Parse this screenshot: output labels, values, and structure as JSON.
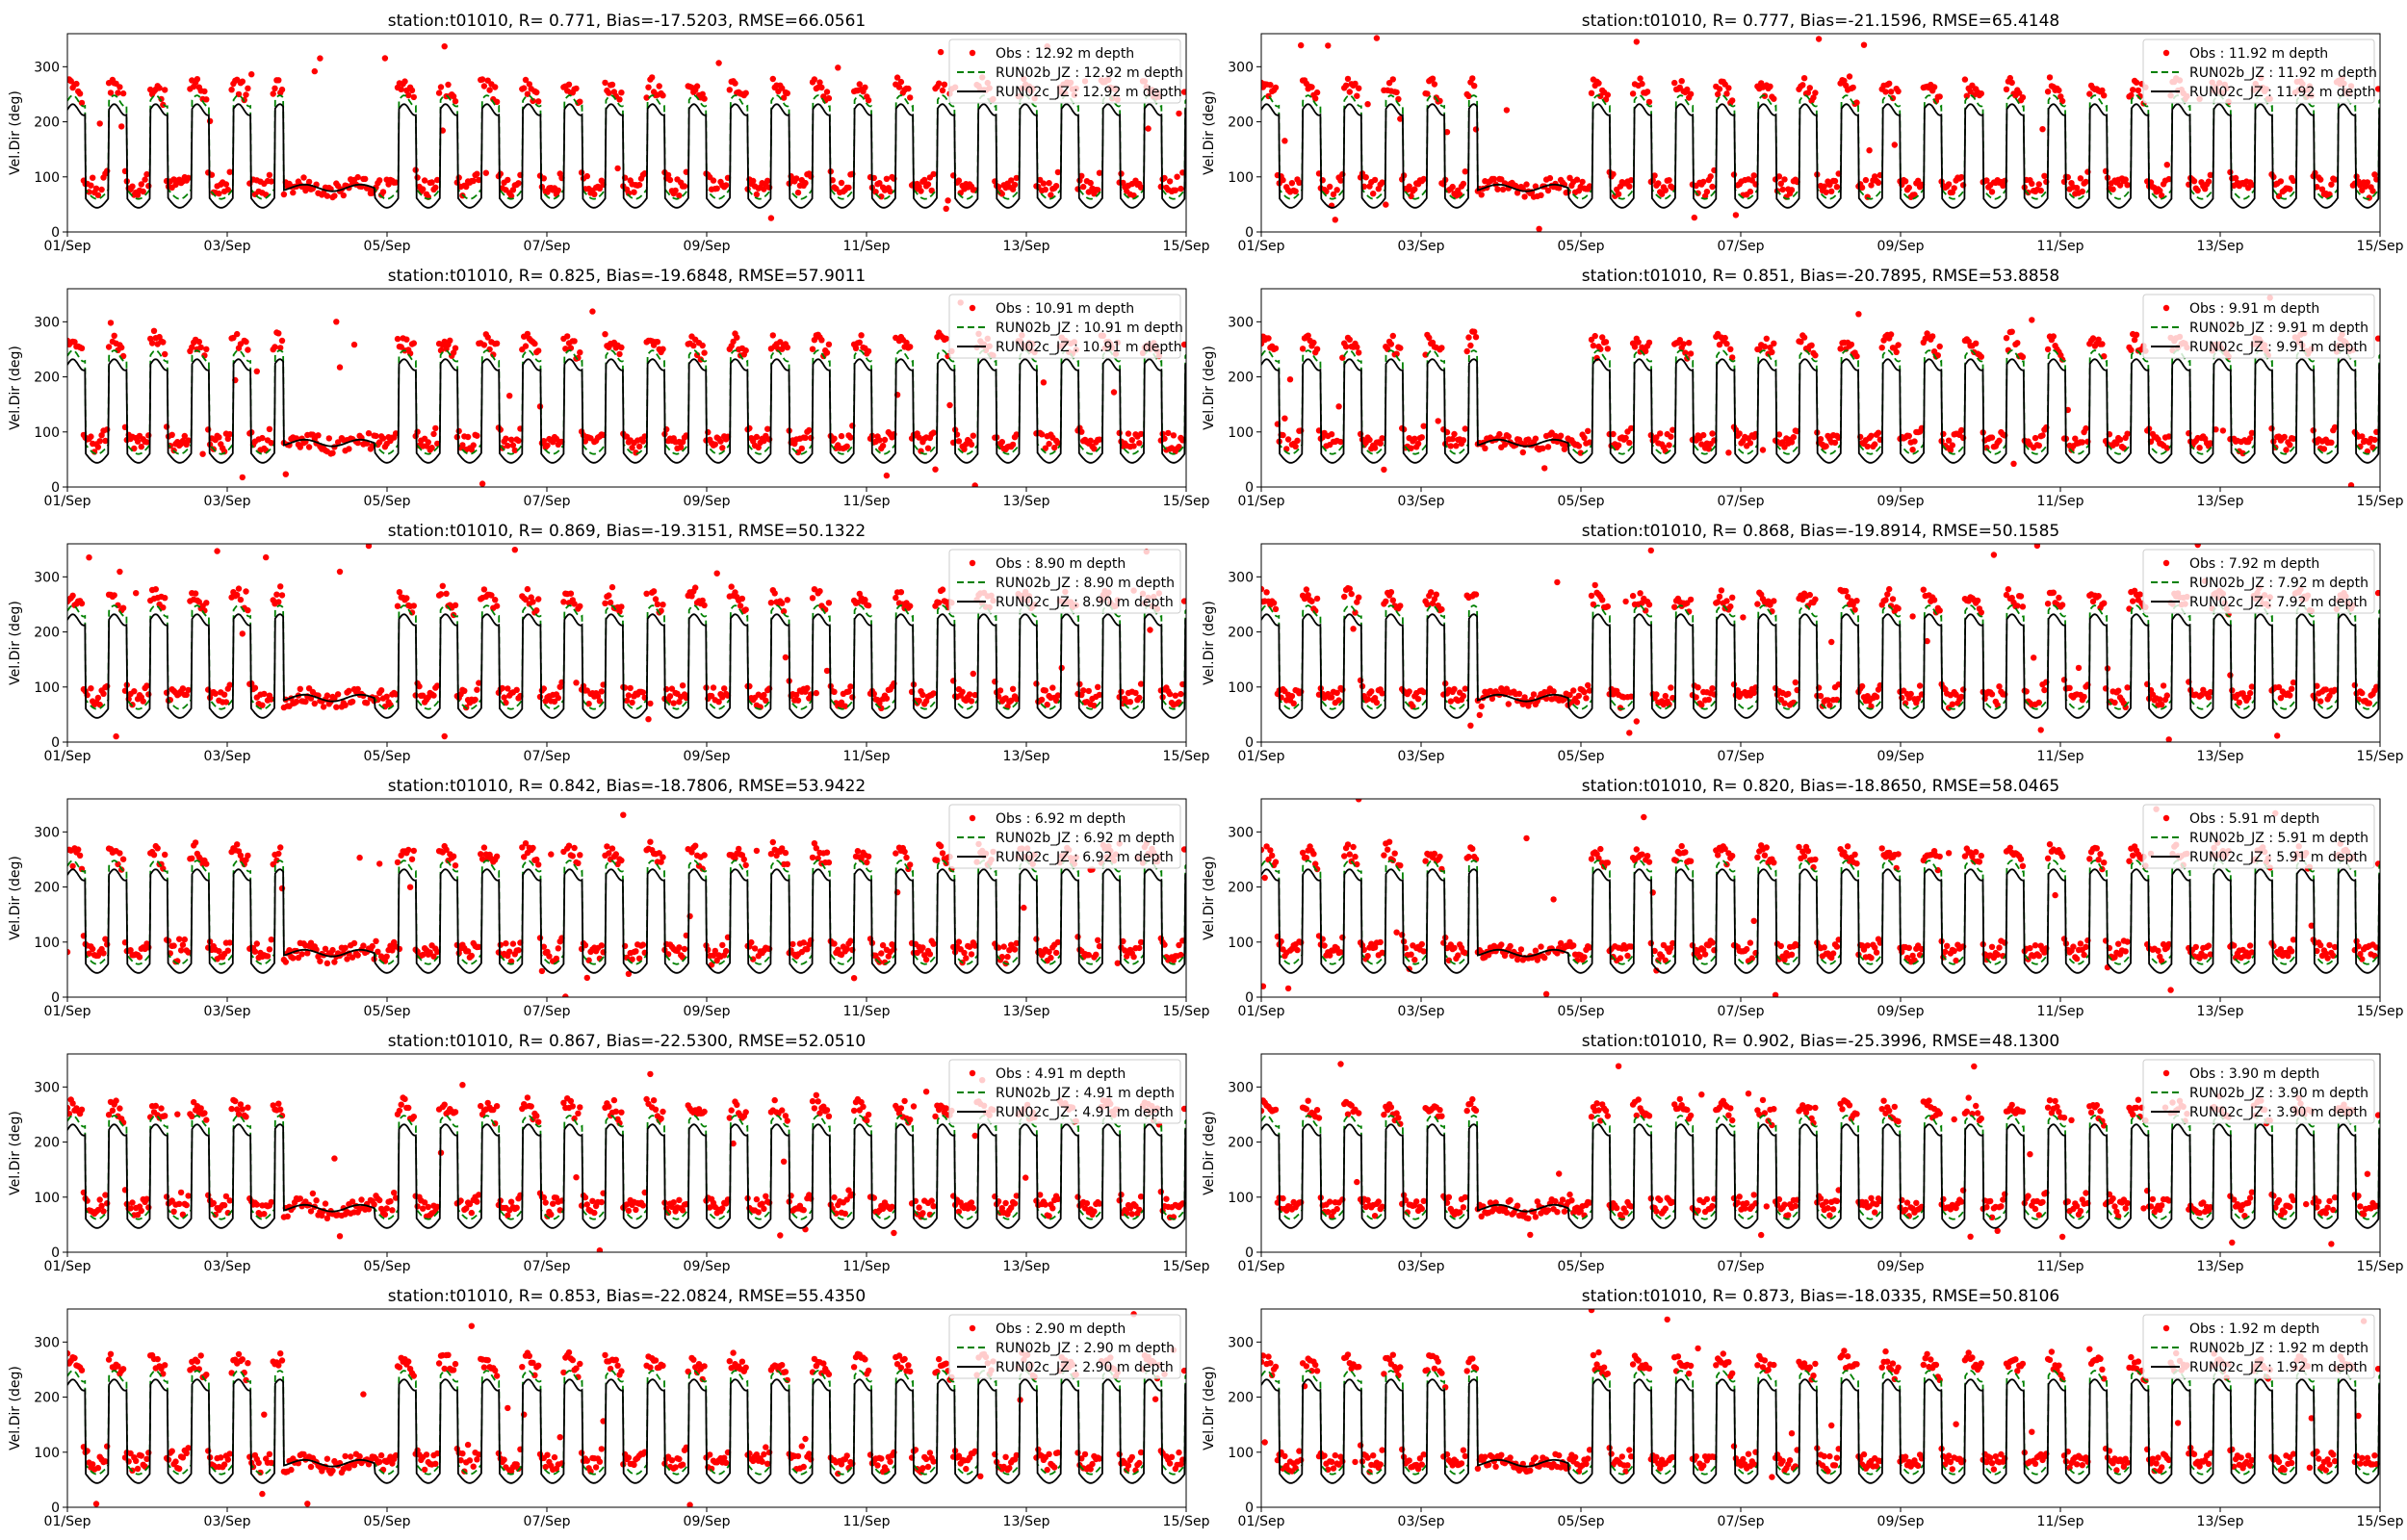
{
  "figure": {
    "ylabel": "Vel.Dir (deg)",
    "x_ticks": [
      "01/Sep",
      "03/Sep",
      "05/Sep",
      "07/Sep",
      "09/Sep",
      "11/Sep",
      "13/Sep",
      "15/Sep"
    ],
    "y_ticks": [
      "0",
      "100",
      "200",
      "300"
    ],
    "colors": {
      "obs": "#ff0000",
      "run02b": "#008000",
      "run02c": "#000000"
    }
  },
  "chart_data": [
    {
      "type": "line",
      "title": "station:t01010, R= 0.771, Bias=-17.5203, RMSE=66.0561",
      "ylabel": "Vel.Dir (deg)",
      "xlim": [
        "01/Sep",
        "15/Sep"
      ],
      "ylim": [
        0,
        360
      ],
      "legend": [
        "Obs : 12.92 m depth",
        "RUN02b_JZ : 12.92 m depth",
        "RUN02c_JZ : 12.92 m depth"
      ],
      "legend_position": "top-right",
      "depth_m": 12.92,
      "R": 0.771,
      "bias": -17.5203,
      "rmse": 66.0561
    },
    {
      "type": "line",
      "title": "station:t01010, R= 0.777, Bias=-21.1596, RMSE=65.4148",
      "ylabel": "Vel.Dir (deg)",
      "xlim": [
        "01/Sep",
        "15/Sep"
      ],
      "ylim": [
        0,
        360
      ],
      "legend": [
        "Obs : 11.92 m depth",
        "RUN02b_JZ : 11.92 m depth",
        "RUN02c_JZ : 11.92 m depth"
      ],
      "legend_position": "top-right",
      "depth_m": 11.92,
      "R": 0.777,
      "bias": -21.1596,
      "rmse": 65.4148
    },
    {
      "type": "line",
      "title": "station:t01010, R= 0.825, Bias=-19.6848, RMSE=57.9011",
      "ylabel": "Vel.Dir (deg)",
      "xlim": [
        "01/Sep",
        "15/Sep"
      ],
      "ylim": [
        0,
        360
      ],
      "legend": [
        "Obs : 10.91 m depth",
        "RUN02b_JZ : 10.91 m depth",
        "RUN02c_JZ : 10.91 m depth"
      ],
      "legend_position": "top-right",
      "depth_m": 10.91,
      "R": 0.825,
      "bias": -19.6848,
      "rmse": 57.9011
    },
    {
      "type": "line",
      "title": "station:t01010, R= 0.851, Bias=-20.7895, RMSE=53.8858",
      "ylabel": "Vel.Dir (deg)",
      "xlim": [
        "01/Sep",
        "15/Sep"
      ],
      "ylim": [
        0,
        360
      ],
      "legend": [
        "Obs : 9.91 m depth",
        "RUN02b_JZ : 9.91 m depth",
        "RUN02c_JZ : 9.91 m depth"
      ],
      "legend_position": "top-right",
      "depth_m": 9.91,
      "R": 0.851,
      "bias": -20.7895,
      "rmse": 53.8858
    },
    {
      "type": "line",
      "title": "station:t01010, R= 0.869, Bias=-19.3151, RMSE=50.1322",
      "ylabel": "Vel.Dir (deg)",
      "xlim": [
        "01/Sep",
        "15/Sep"
      ],
      "ylim": [
        0,
        360
      ],
      "legend": [
        "Obs : 8.90 m depth",
        "RUN02b_JZ : 8.90 m depth",
        "RUN02c_JZ : 8.90 m depth"
      ],
      "legend_position": "top-right",
      "depth_m": 8.9,
      "R": 0.869,
      "bias": -19.3151,
      "rmse": 50.1322
    },
    {
      "type": "line",
      "title": "station:t01010, R= 0.868, Bias=-19.8914, RMSE=50.1585",
      "ylabel": "Vel.Dir (deg)",
      "xlim": [
        "01/Sep",
        "15/Sep"
      ],
      "ylim": [
        0,
        360
      ],
      "legend": [
        "Obs : 7.92 m depth",
        "RUN02b_JZ : 7.92 m depth",
        "RUN02c_JZ : 7.92 m depth"
      ],
      "legend_position": "top-right",
      "depth_m": 7.92,
      "R": 0.868,
      "bias": -19.8914,
      "rmse": 50.1585
    },
    {
      "type": "line",
      "title": "station:t01010, R= 0.842, Bias=-18.7806, RMSE=53.9422",
      "ylabel": "Vel.Dir (deg)",
      "xlim": [
        "01/Sep",
        "15/Sep"
      ],
      "ylim": [
        0,
        360
      ],
      "legend": [
        "Obs : 6.92 m depth",
        "RUN02b_JZ : 6.92 m depth",
        "RUN02c_JZ : 6.92 m depth"
      ],
      "legend_position": "top-right",
      "depth_m": 6.92,
      "R": 0.842,
      "bias": -18.7806,
      "rmse": 53.9422
    },
    {
      "type": "line",
      "title": "station:t01010, R= 0.820, Bias=-18.8650, RMSE=58.0465",
      "ylabel": "Vel.Dir (deg)",
      "xlim": [
        "01/Sep",
        "15/Sep"
      ],
      "ylim": [
        0,
        360
      ],
      "legend": [
        "Obs : 5.91 m depth",
        "RUN02b_JZ : 5.91 m depth",
        "RUN02c_JZ : 5.91 m depth"
      ],
      "legend_position": "top-right",
      "depth_m": 5.91,
      "R": 0.82,
      "bias": -18.865,
      "rmse": 58.0465
    },
    {
      "type": "line",
      "title": "station:t01010, R= 0.867, Bias=-22.5300, RMSE=52.0510",
      "ylabel": "Vel.Dir (deg)",
      "xlim": [
        "01/Sep",
        "15/Sep"
      ],
      "ylim": [
        0,
        360
      ],
      "legend": [
        "Obs : 4.91 m depth",
        "RUN02b_JZ : 4.91 m depth",
        "RUN02c_JZ : 4.91 m depth"
      ],
      "legend_position": "top-right",
      "depth_m": 4.91,
      "R": 0.867,
      "bias": -22.53,
      "rmse": 52.051
    },
    {
      "type": "line",
      "title": "station:t01010, R= 0.902, Bias=-25.3996, RMSE=48.1300",
      "ylabel": "Vel.Dir (deg)",
      "xlim": [
        "01/Sep",
        "15/Sep"
      ],
      "ylim": [
        0,
        360
      ],
      "legend": [
        "Obs : 3.90 m depth",
        "RUN02b_JZ : 3.90 m depth",
        "RUN02c_JZ : 3.90 m depth"
      ],
      "legend_position": "top-right",
      "depth_m": 3.9,
      "R": 0.902,
      "bias": -25.3996,
      "rmse": 48.13
    },
    {
      "type": "line",
      "title": "station:t01010, R= 0.853, Bias=-22.0824, RMSE=55.4350",
      "ylabel": "Vel.Dir (deg)",
      "xlim": [
        "01/Sep",
        "15/Sep"
      ],
      "ylim": [
        0,
        360
      ],
      "legend": [
        "Obs : 2.90 m depth",
        "RUN02b_JZ : 2.90 m depth",
        "RUN02c_JZ : 2.90 m depth"
      ],
      "legend_position": "top-right",
      "depth_m": 2.9,
      "R": 0.853,
      "bias": -22.0824,
      "rmse": 55.435
    },
    {
      "type": "line",
      "title": "station:t01010, R= 0.873, Bias=-18.0335, RMSE=50.8106",
      "ylabel": "Vel.Dir (deg)",
      "xlim": [
        "01/Sep",
        "15/Sep"
      ],
      "ylim": [
        0,
        360
      ],
      "legend": [
        "Obs : 1.92 m depth",
        "RUN02b_JZ : 1.92 m depth",
        "RUN02c_JZ : 1.92 m depth"
      ],
      "legend_position": "top-right",
      "depth_m": 1.92,
      "R": 0.873,
      "bias": -18.0335,
      "rmse": 50.8106
    }
  ]
}
